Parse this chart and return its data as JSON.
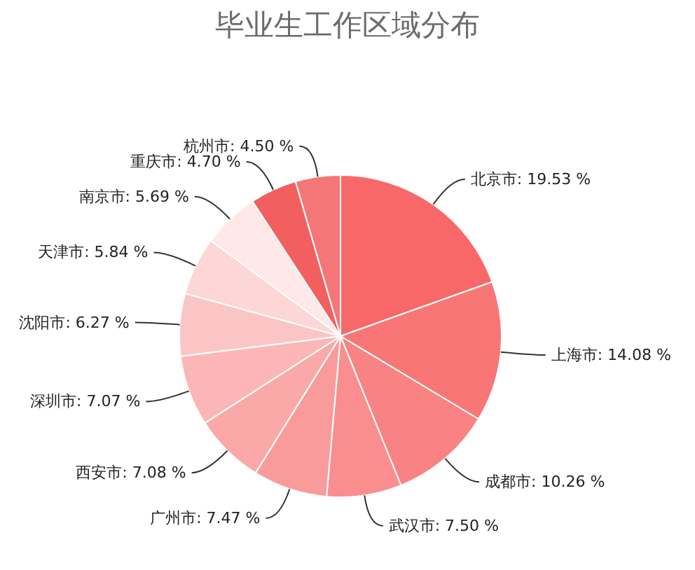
{
  "chart_data": {
    "type": "pie",
    "title": "毕业生工作区域分布",
    "categories": [
      "北京市",
      "上海市",
      "成都市",
      "武汉市",
      "广州市",
      "西安市",
      "深圳市",
      "沈阳市",
      "天津市",
      "南京市",
      "重庆市",
      "杭州市"
    ],
    "values": [
      19.53,
      14.08,
      10.26,
      7.5,
      7.47,
      7.08,
      7.07,
      6.27,
      5.84,
      5.69,
      4.7,
      4.5
    ],
    "value_labels": [
      ": 19.53 %",
      ": 14.08 %",
      ": 10.26 %",
      ": 7.50 %",
      ": 7.47 %",
      ": 7.08 %",
      ": 7.07 %",
      ": 6.27 %",
      ": 5.84 %",
      ": 5.69 %",
      ": 4.70 %",
      ": 4.50 %"
    ],
    "colors": [
      "#f86868",
      "#f97676",
      "#f98383",
      "#fa8e8e",
      "#fa9b9b",
      "#fba8a8",
      "#fcb6b6",
      "#fcc5c5",
      "#fdd6d6",
      "#fee8e8",
      "#f25f5f",
      "#f47676"
    ]
  }
}
